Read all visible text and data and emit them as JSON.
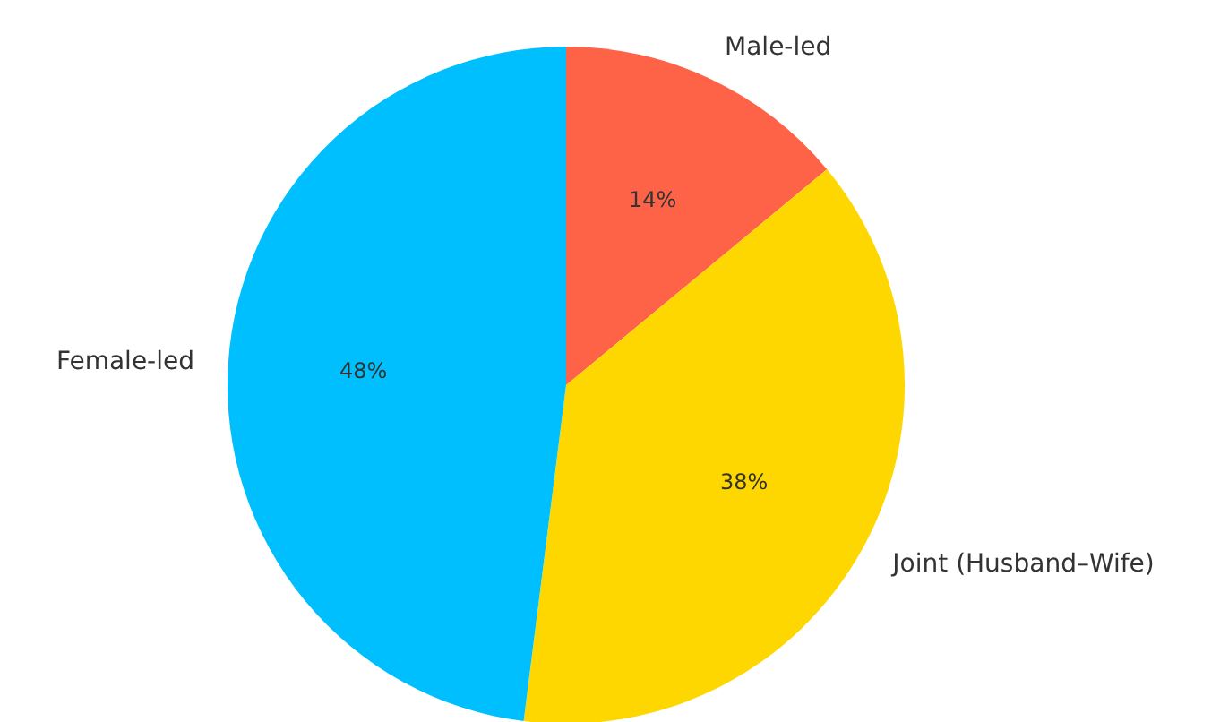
{
  "chart_data": {
    "type": "pie",
    "categories": [
      "Male-led",
      "Joint (Husband–Wife)",
      "Female-led"
    ],
    "values": [
      14,
      38,
      48
    ],
    "colors": [
      "#ff6347",
      "#ffd700",
      "#00bfff"
    ],
    "value_labels": [
      "14%",
      "38%",
      "48%"
    ]
  }
}
